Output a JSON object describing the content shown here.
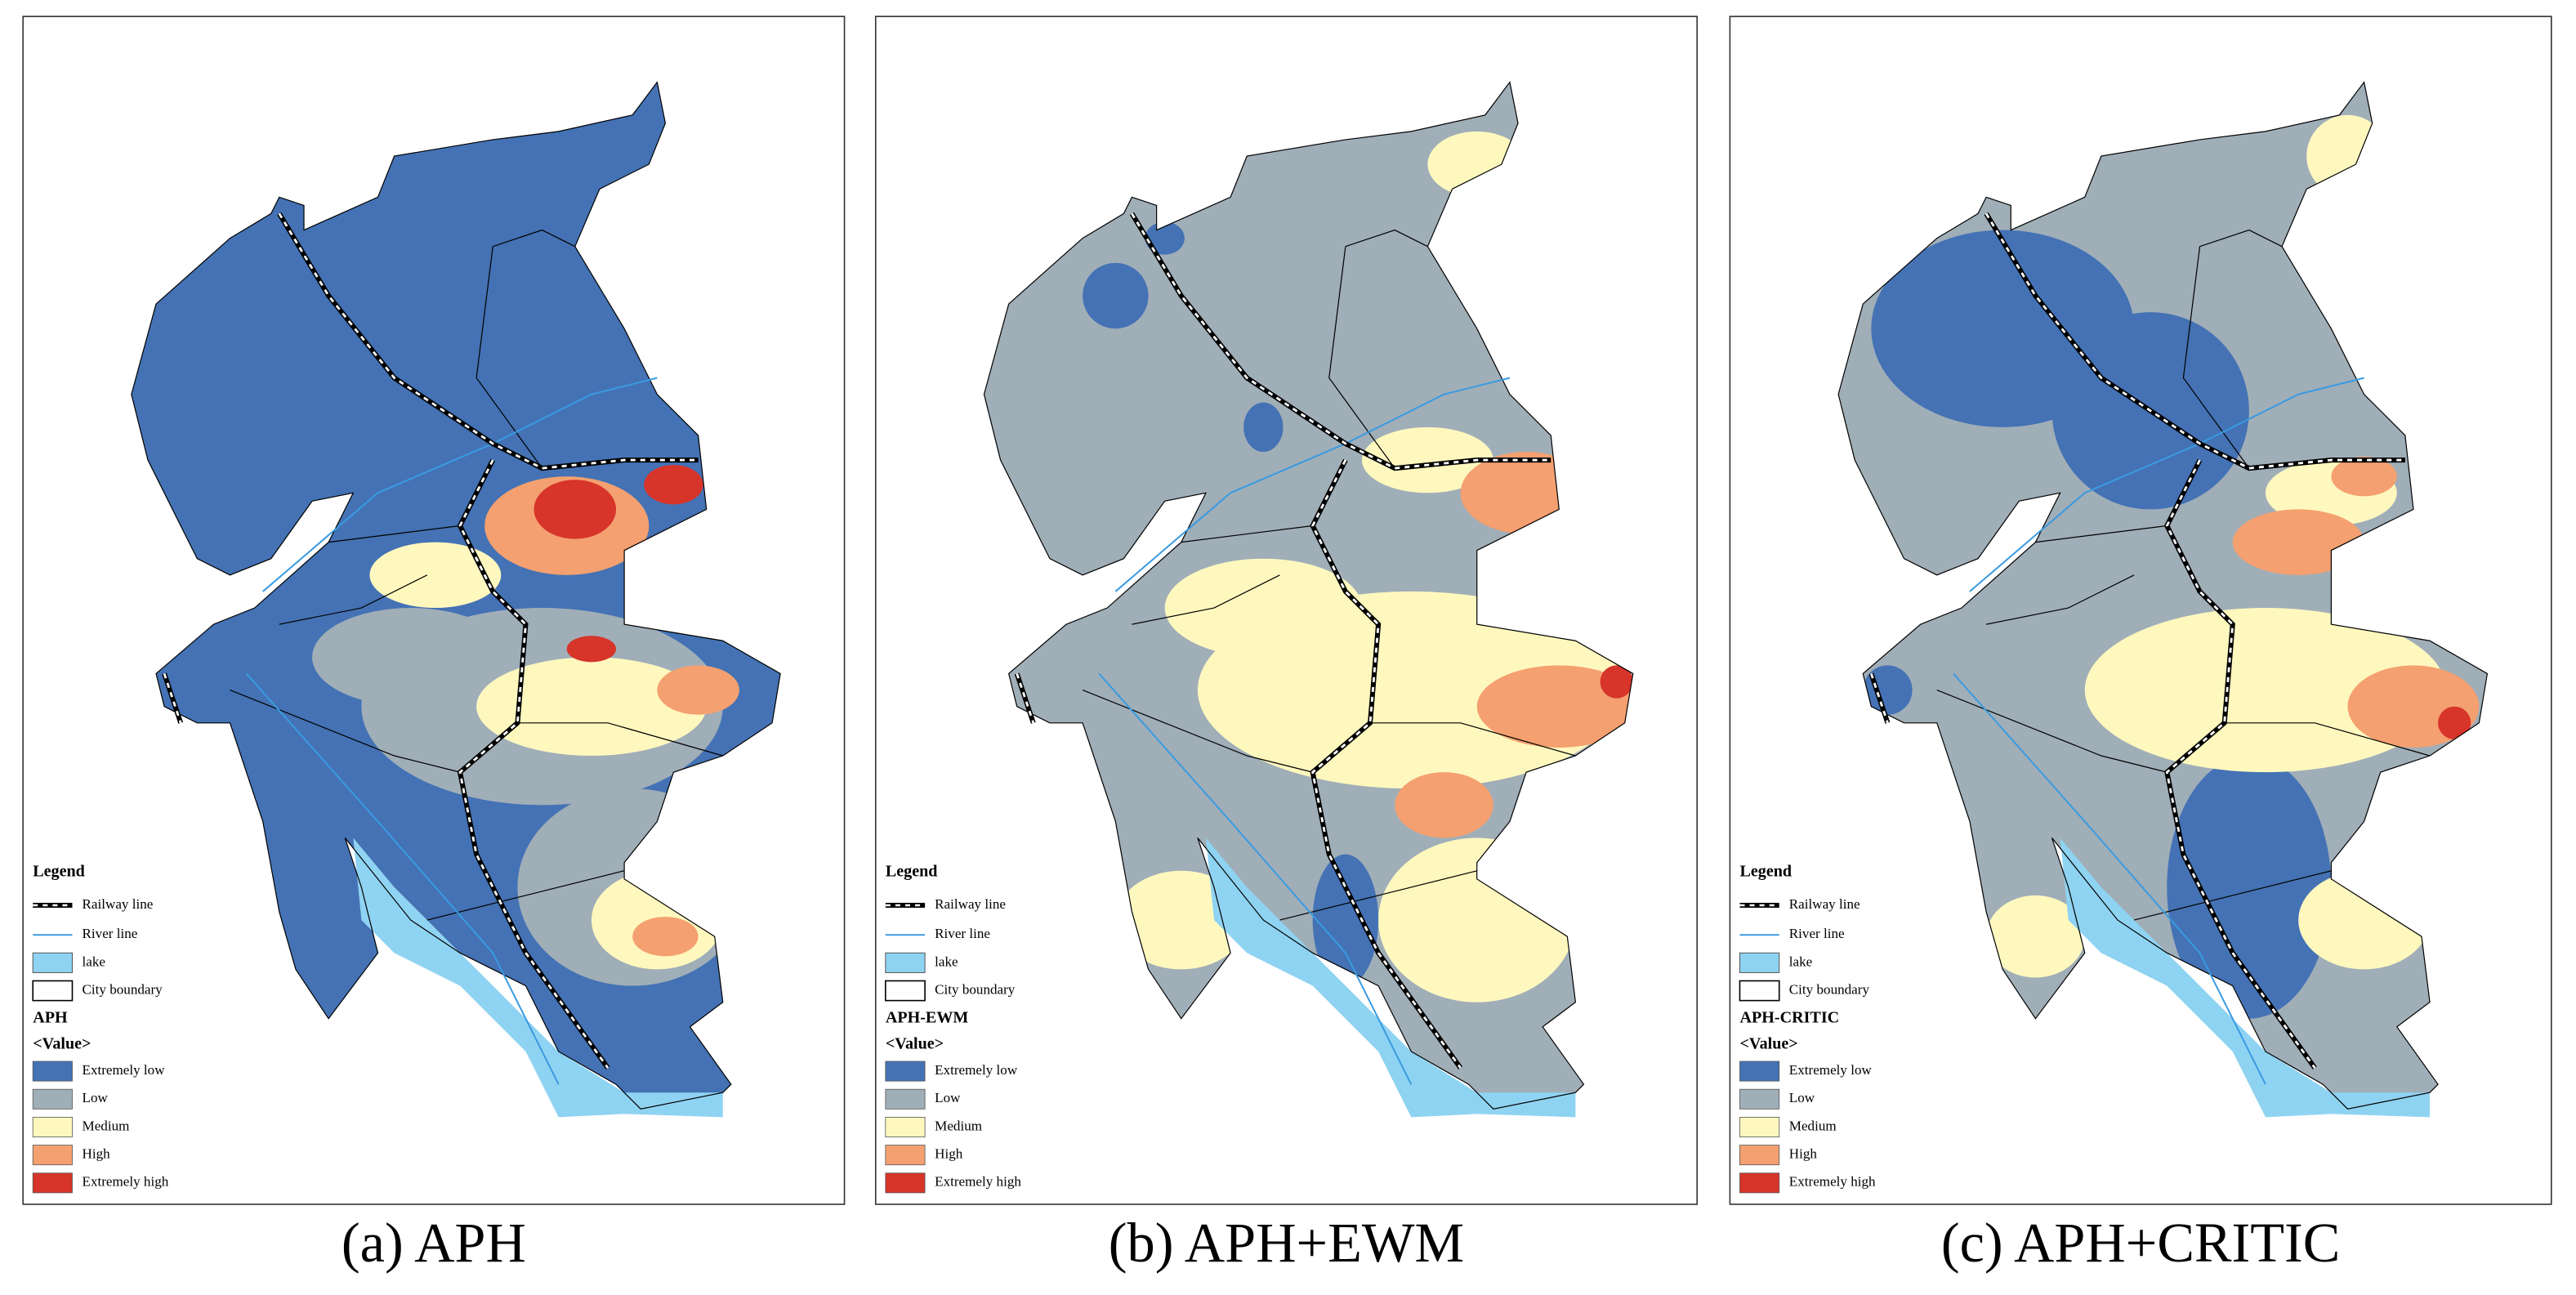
{
  "panels": [
    {
      "caption": "(a) APH",
      "legend": {
        "title": "Legend",
        "items": [
          "Railway line",
          "River line",
          "lake",
          "City boundary"
        ],
        "layer": "APH",
        "field": "<Value>",
        "classes": [
          "Extremely low",
          "Low",
          "Medium",
          "High",
          "Extremely high"
        ]
      }
    },
    {
      "caption": "(b) APH+EWM",
      "legend": {
        "title": "Legend",
        "items": [
          "Railway line",
          "River line",
          "lake",
          "City boundary"
        ],
        "layer": "APH-EWM",
        "field": "<Value>",
        "classes": [
          "Extremely low",
          "Low",
          "Medium",
          "High",
          "Extremely high"
        ]
      }
    },
    {
      "caption": "(c) APH+CRITIC",
      "legend": {
        "title": "Legend",
        "items": [
          "Railway line",
          "River line",
          "lake",
          "City boundary"
        ],
        "layer": "APH-CRITIC",
        "field": "<Value>",
        "classes": [
          "Extremely low",
          "Low",
          "Medium",
          "High",
          "Extremely high"
        ]
      }
    }
  ]
}
